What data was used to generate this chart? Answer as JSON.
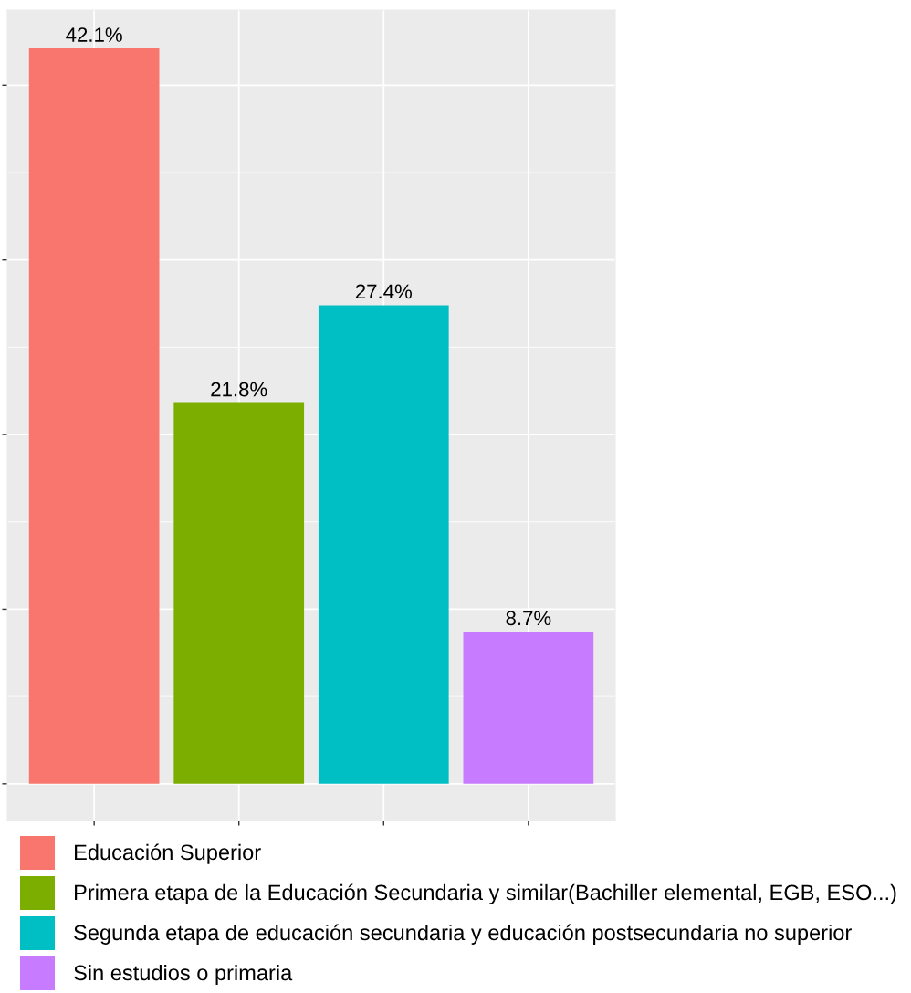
{
  "chart_data": {
    "type": "bar",
    "stacked": true,
    "categories": [
      null,
      null,
      null,
      null
    ],
    "series": [
      {
        "name": "Educación Superior",
        "color": "#f8766d",
        "values": [
          42.1,
          null,
          null,
          null
        ],
        "value_labels": [
          "42.1%",
          null,
          null,
          null
        ]
      },
      {
        "name": "Primera etapa de la Educación Secundaria y similar(Bachiller elemental, EGB, ESO...)",
        "color": "#7cae00",
        "values": [
          null,
          21.8,
          null,
          null
        ],
        "value_labels": [
          null,
          "21.8%",
          null,
          null
        ]
      },
      {
        "name": "Segunda etapa de educación secundaria y educación postsecundaria no superior",
        "color": "#00bfc4",
        "values": [
          null,
          null,
          27.4,
          null
        ],
        "value_labels": [
          null,
          null,
          "27.4%",
          null
        ]
      },
      {
        "name": "Sin estudios o primaria",
        "color": "#c77cff",
        "values": [
          null,
          null,
          null,
          8.7
        ],
        "value_labels": [
          null,
          null,
          null,
          "8.7%"
        ]
      }
    ],
    "ylim": [
      -2.1,
      44.3
    ],
    "yticks": [
      {
        "value": 0,
        "label": null
      },
      {
        "value": 10,
        "label": null
      },
      {
        "value": 20,
        "label": null
      },
      {
        "value": 30,
        "label": null
      },
      {
        "value": 40,
        "label": null
      }
    ],
    "grid": true,
    "legend": "bottom"
  }
}
